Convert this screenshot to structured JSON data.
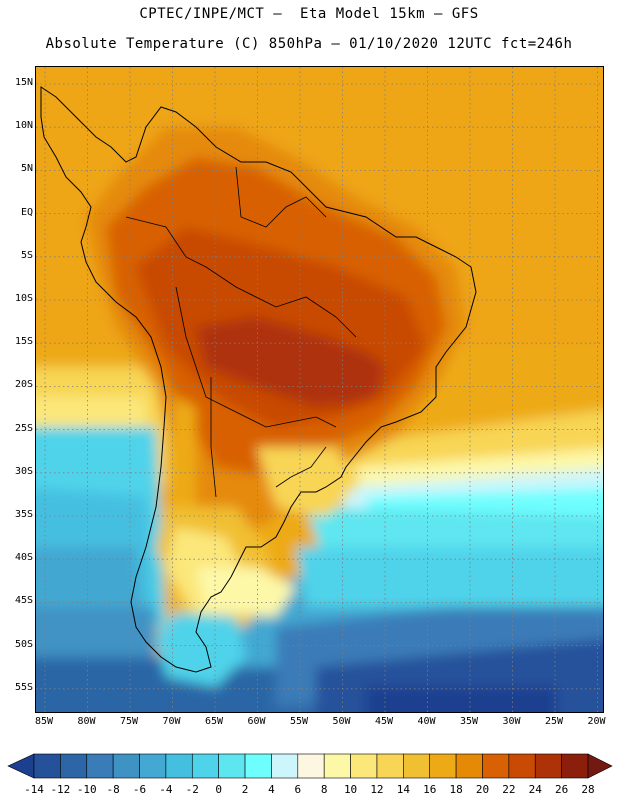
{
  "header": {
    "line1": "CPTEC/INPE/MCT –  Eta Model 15km – GFS",
    "line2": "Absolute Temperature (C) 850hPa – 01/10/2020 12UTC fct=246h"
  },
  "map": {
    "region": "South America",
    "lat_labels": [
      "15N",
      "10N",
      "5N",
      "EQ",
      "5S",
      "10S",
      "15S",
      "20S",
      "25S",
      "30S",
      "35S",
      "40S",
      "45S",
      "50S",
      "55S"
    ],
    "lon_labels": [
      "85W",
      "80W",
      "75W",
      "70W",
      "65W",
      "60W",
      "55W",
      "50W",
      "45W",
      "40W",
      "35W",
      "30W",
      "25W",
      "20W"
    ],
    "grid": "dotted graticule every 5 degrees"
  },
  "legend": {
    "unit": "C",
    "values": [
      "-14",
      "-12",
      "-10",
      "-8",
      "-6",
      "-4",
      "-2",
      "0",
      "2",
      "4",
      "6",
      "8",
      "10",
      "12",
      "14",
      "16",
      "18",
      "20",
      "22",
      "24",
      "26",
      "28"
    ],
    "colors": [
      "#1d3f8f",
      "#25519b",
      "#2c66a6",
      "#3a7cb8",
      "#3f93c4",
      "#43a8d2",
      "#44bfe0",
      "#4fd3ea",
      "#5ee6f0",
      "#6efefe",
      "#ccf6fb",
      "#fdf6e0",
      "#fdf8a8",
      "#fbe77a",
      "#f8d555",
      "#f1bf32",
      "#edaa16",
      "#e58a07",
      "#d86104",
      "#c84a04",
      "#ae3207",
      "#8c1f0b",
      "#721a12"
    ]
  }
}
